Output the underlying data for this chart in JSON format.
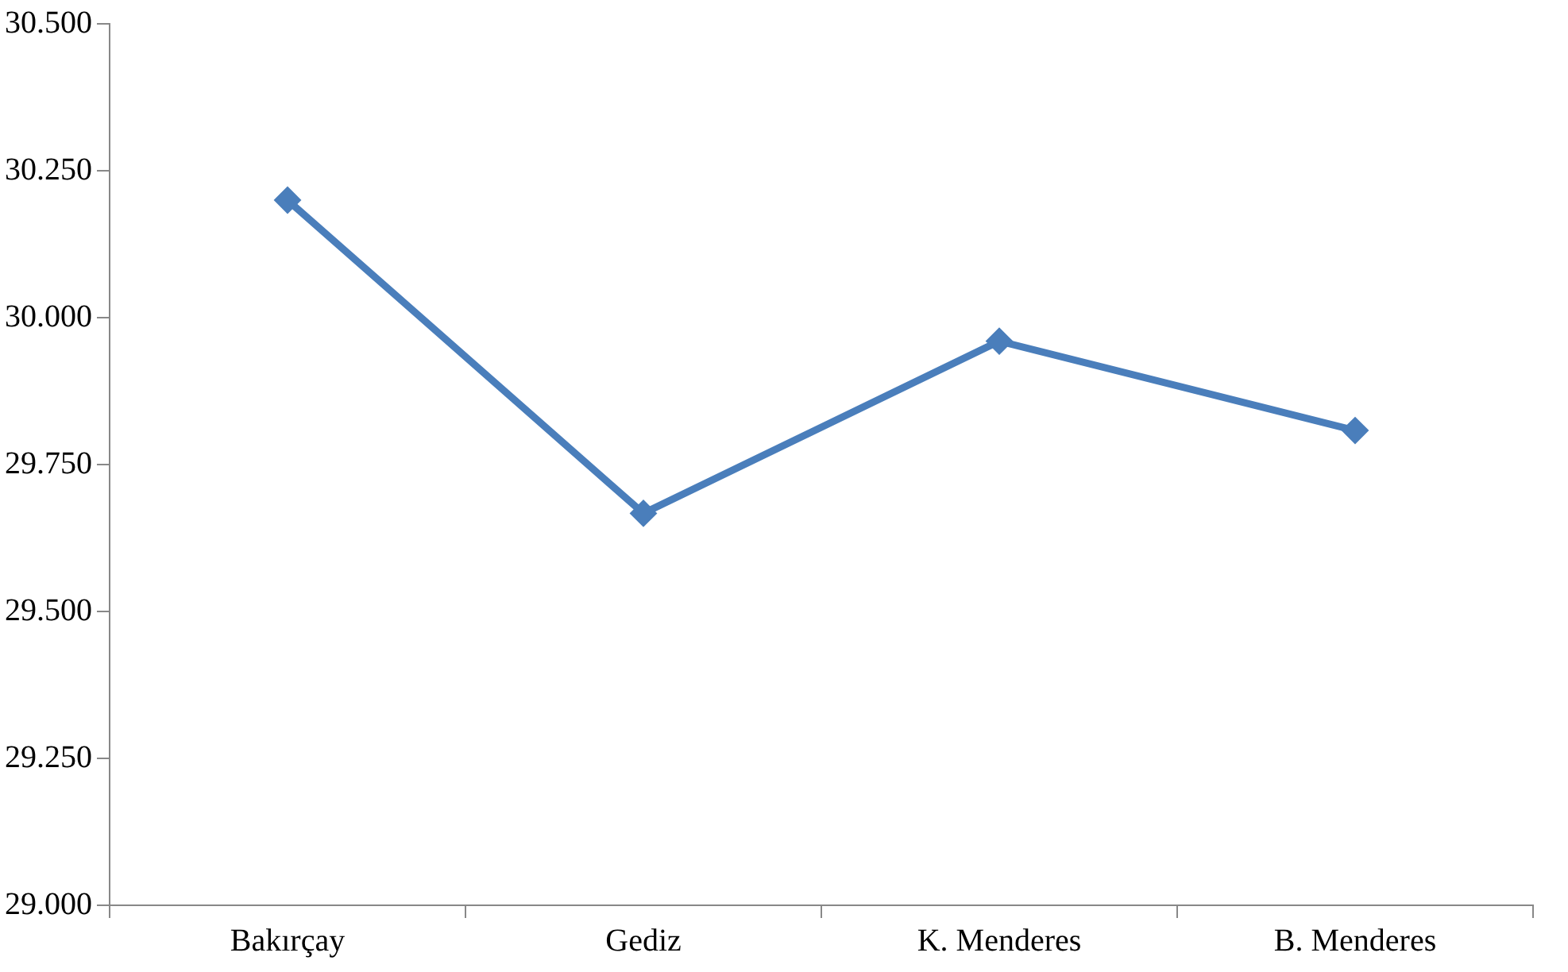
{
  "chart_data": {
    "type": "line",
    "categories": [
      "Bakırçay",
      "Gediz",
      "K. Menderes",
      "B. Menderes"
    ],
    "series": [
      {
        "color": "#4a7ebb",
        "values": [
          30.2,
          29.667,
          29.96,
          29.808
        ]
      }
    ],
    "ylim": [
      29.0,
      30.5
    ],
    "yticks": [
      {
        "value": 29.0,
        "label": "29.000"
      },
      {
        "value": 29.25,
        "label": "29.250"
      },
      {
        "value": 29.5,
        "label": "29.500"
      },
      {
        "value": 29.75,
        "label": "29.750"
      },
      {
        "value": 30.0,
        "label": "30.000"
      },
      {
        "value": 30.25,
        "label": "30.250"
      },
      {
        "value": 30.5,
        "label": "30.500"
      }
    ],
    "grid": false,
    "legend": false,
    "marker": "diamond",
    "line_style": "solid"
  }
}
